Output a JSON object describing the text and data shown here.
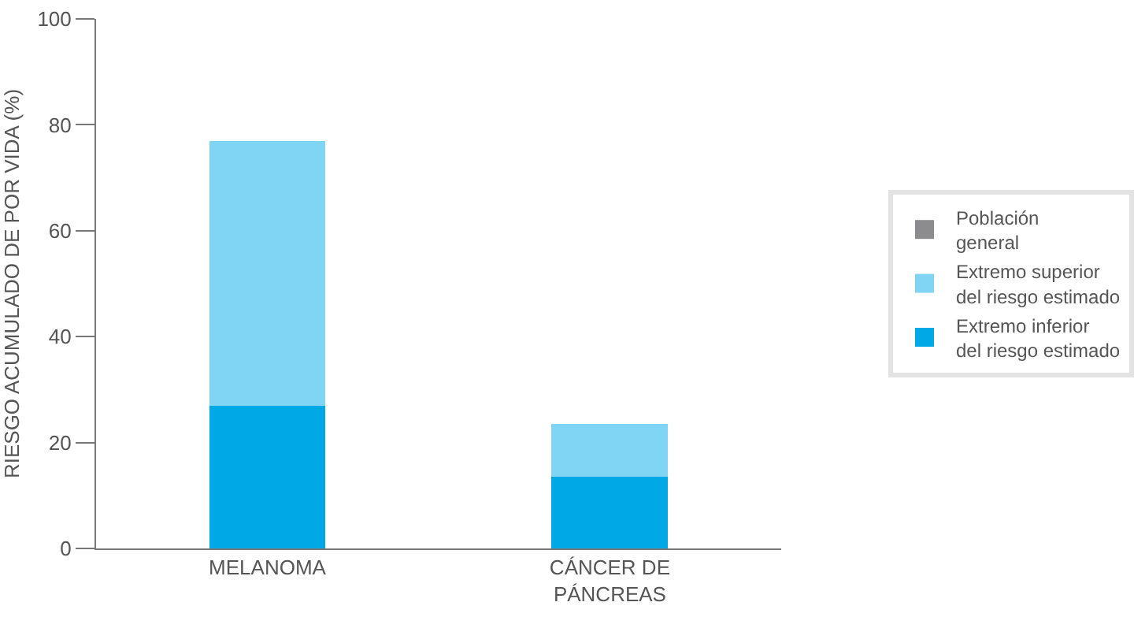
{
  "chart_data": {
    "type": "bar",
    "stacked": true,
    "ylabel": "RIESGO ACUMULADO DE POR VIDA (%)",
    "categories": [
      "MELANOMA",
      "CÁNCER DE PÁNCREAS"
    ],
    "series": [
      {
        "name": "Extremo inferior del riesgo estimado",
        "color": "#00a9e6",
        "values": [
          27,
          13.5
        ]
      },
      {
        "name": "Extremo superior del riesgo estimado",
        "color": "#80d4f4",
        "values": [
          50,
          10
        ]
      },
      {
        "name": "Población general",
        "color": "#8c8c8e",
        "values": [
          null,
          null
        ]
      }
    ],
    "ylim": [
      0,
      100
    ],
    "yticks": [
      0,
      20,
      40,
      60,
      80,
      100
    ],
    "legend": "right"
  }
}
